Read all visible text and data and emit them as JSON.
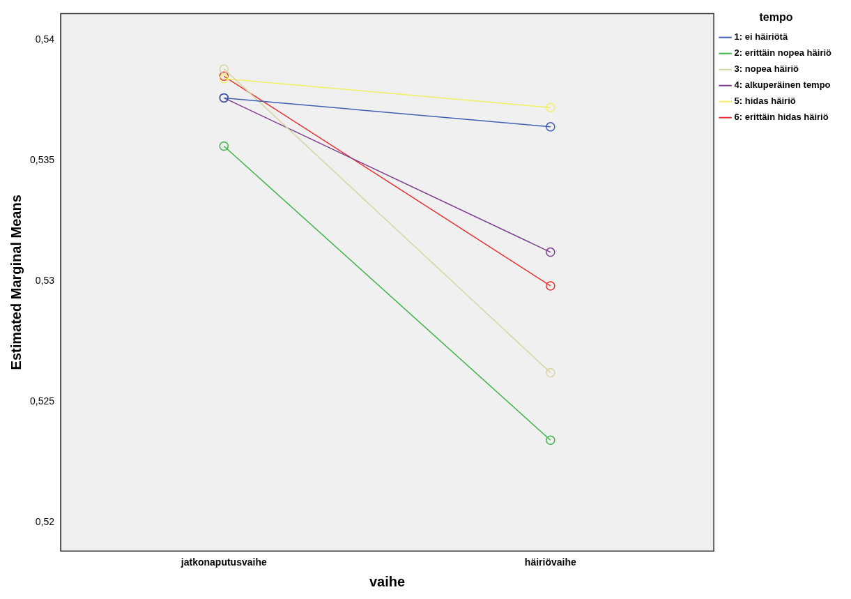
{
  "chart_data": {
    "type": "line",
    "xlabel": "vaihe",
    "ylabel": "Estimated Marginal Means",
    "legend_title": "tempo",
    "categories": [
      "jatkonaputusvaihe",
      "häiriövaihe"
    ],
    "series": [
      {
        "name": "1: ei häiriötä",
        "color": "#3f5fb0",
        "values": [
          0.5376,
          0.5364
        ]
      },
      {
        "name": "2: erittäin nopea häiriö",
        "color": "#3cb44a",
        "values": [
          0.5356,
          0.5234
        ]
      },
      {
        "name": "3: nopea häiriö",
        "color": "#d8d3a0",
        "values": [
          0.5388,
          0.5262
        ]
      },
      {
        "name": "4: alkuperäinen tempo",
        "color": "#7a3c8c",
        "values": [
          0.5376,
          0.5312
        ]
      },
      {
        "name": "5: hidas häiriö",
        "color": "#f0f060",
        "values": [
          0.5384,
          0.5372
        ]
      },
      {
        "name": "6: erittäin hidas häiriö",
        "color": "#e83030",
        "values": [
          0.5385,
          0.5298
        ]
      }
    ],
    "ylim": [
      0.5188,
      0.5411
    ],
    "yticks": [
      {
        "value": 0.52,
        "label": "0,52"
      },
      {
        "value": 0.525,
        "label": "0,525"
      },
      {
        "value": 0.53,
        "label": "0,53"
      },
      {
        "value": 0.535,
        "label": "0,535"
      },
      {
        "value": 0.54,
        "label": "0,54"
      }
    ],
    "grid": false,
    "legend": "top right",
    "marker": "circle",
    "line_style": "solid"
  }
}
